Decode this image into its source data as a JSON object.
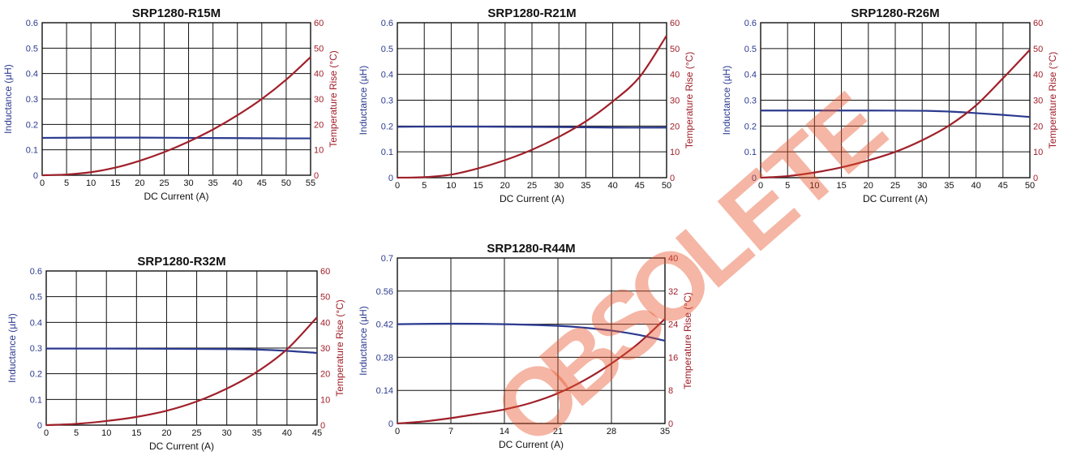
{
  "watermark": {
    "text": "OBSOLETE",
    "color": "#e8542a"
  },
  "colors": {
    "inductance": "#2b3a8f",
    "temperature": "#a0202a",
    "grid": "#111111"
  },
  "chart_data": [
    {
      "type": "line",
      "title": "SRP1280-R15M",
      "xlabel": "DC Current (A)",
      "ylabel": "Inductance (µH)",
      "y2label": "Temperature Rise (°C)",
      "xlim": [
        0,
        55
      ],
      "xticks": [
        0,
        5,
        10,
        15,
        20,
        25,
        30,
        35,
        40,
        45,
        50,
        55
      ],
      "ylim": [
        0,
        0.6
      ],
      "yticks": [
        0,
        0.1,
        0.2,
        0.3,
        0.4,
        0.5,
        0.6
      ],
      "y2lim": [
        0,
        60
      ],
      "y2ticks": [
        0,
        10,
        20,
        30,
        40,
        50,
        60
      ],
      "grid": true,
      "series": [
        {
          "axis": "left",
          "color": "#2b3a8f",
          "x": [
            0,
            10,
            20,
            30,
            40,
            50,
            55
          ],
          "y": [
            0.147,
            0.148,
            0.148,
            0.147,
            0.146,
            0.145,
            0.145
          ]
        },
        {
          "axis": "right",
          "color": "#a0202a",
          "x": [
            0,
            5,
            10,
            15,
            20,
            25,
            30,
            35,
            40,
            45,
            50,
            55
          ],
          "y": [
            0,
            0.3,
            1.2,
            3,
            5.7,
            9.1,
            13.2,
            18,
            23.6,
            30,
            37.6,
            46.5
          ]
        }
      ]
    },
    {
      "type": "line",
      "title": "SRP1280-R21M",
      "xlabel": "DC Current (A)",
      "ylabel": "Inductance (µH)",
      "y2label": "Temperature Rise (°C)",
      "xlim": [
        0,
        50
      ],
      "xticks": [
        0,
        5,
        10,
        15,
        20,
        25,
        30,
        35,
        40,
        45,
        50
      ],
      "ylim": [
        0,
        0.6
      ],
      "yticks": [
        0,
        0.1,
        0.2,
        0.3,
        0.4,
        0.5,
        0.6
      ],
      "y2lim": [
        0,
        60
      ],
      "y2ticks": [
        0,
        10,
        20,
        30,
        40,
        50,
        60
      ],
      "grid": true,
      "series": [
        {
          "axis": "left",
          "color": "#2b3a8f",
          "x": [
            0,
            10,
            20,
            30,
            40,
            50
          ],
          "y": [
            0.197,
            0.198,
            0.197,
            0.196,
            0.194,
            0.194
          ]
        },
        {
          "axis": "right",
          "color": "#a0202a",
          "x": [
            0,
            5,
            10,
            15,
            20,
            25,
            30,
            35,
            40,
            45,
            50
          ],
          "y": [
            0,
            0.2,
            1.2,
            3.6,
            6.8,
            10.8,
            15.8,
            21.8,
            29.5,
            39,
            55
          ]
        }
      ]
    },
    {
      "type": "line",
      "title": "SRP1280-R26M",
      "xlabel": "DC Current (A)",
      "ylabel": "Inductance (µH)",
      "y2label": "Temperature Rise (°C)",
      "xlim": [
        0,
        50
      ],
      "xticks": [
        0,
        5,
        10,
        15,
        20,
        25,
        30,
        35,
        40,
        45,
        50
      ],
      "ylim": [
        0,
        0.6
      ],
      "yticks": [
        0,
        0.1,
        0.2,
        0.3,
        0.4,
        0.5,
        0.6
      ],
      "y2lim": [
        0,
        60
      ],
      "y2ticks": [
        0,
        10,
        20,
        30,
        40,
        50,
        60
      ],
      "grid": true,
      "series": [
        {
          "axis": "left",
          "color": "#2b3a8f",
          "x": [
            0,
            10,
            20,
            30,
            35,
            40,
            45,
            50
          ],
          "y": [
            0.26,
            0.26,
            0.26,
            0.259,
            0.256,
            0.25,
            0.243,
            0.235
          ]
        },
        {
          "axis": "right",
          "color": "#a0202a",
          "x": [
            0,
            5,
            10,
            15,
            20,
            25,
            30,
            35,
            40,
            45,
            50
          ],
          "y": [
            0,
            0.6,
            2,
            4,
            6.7,
            10,
            14.5,
            20.2,
            28,
            38.5,
            49.5
          ]
        }
      ]
    },
    {
      "type": "line",
      "title": "SRP1280-R32M",
      "xlabel": "DC Current (A)",
      "ylabel": "Inductance (µH)",
      "y2label": "Temperature Rise (°C)",
      "xlim": [
        0,
        45
      ],
      "xticks": [
        0,
        5,
        10,
        15,
        20,
        25,
        30,
        35,
        40,
        45
      ],
      "ylim": [
        0,
        0.6
      ],
      "yticks": [
        0,
        0.1,
        0.2,
        0.3,
        0.4,
        0.5,
        0.6
      ],
      "y2lim": [
        0,
        60
      ],
      "y2ticks": [
        0,
        10,
        20,
        30,
        40,
        50,
        60
      ],
      "grid": true,
      "series": [
        {
          "axis": "left",
          "color": "#2b3a8f",
          "x": [
            0,
            10,
            20,
            30,
            35,
            40,
            45
          ],
          "y": [
            0.298,
            0.298,
            0.297,
            0.296,
            0.294,
            0.289,
            0.281
          ]
        },
        {
          "axis": "right",
          "color": "#a0202a",
          "x": [
            0,
            5,
            10,
            15,
            20,
            25,
            30,
            35,
            40,
            45
          ],
          "y": [
            0,
            0.5,
            1.6,
            3.2,
            5.6,
            9.2,
            14.2,
            20.7,
            29.5,
            42
          ]
        }
      ]
    },
    {
      "type": "line",
      "title": "SRP1280-R44M",
      "xlabel": "DC Current (A)",
      "ylabel": "Inductance (µH)",
      "y2label": "Temperature Rise (°C)",
      "xlim": [
        0,
        35
      ],
      "xticks": [
        0,
        7,
        14,
        21,
        28,
        35
      ],
      "ylim": [
        0,
        0.7
      ],
      "yticks": [
        0,
        0.14,
        0.28,
        0.42,
        0.56,
        0.7
      ],
      "y2lim": [
        0,
        40
      ],
      "y2ticks": [
        0,
        8,
        16,
        24,
        32,
        40
      ],
      "grid": true,
      "series": [
        {
          "axis": "left",
          "color": "#2b3a8f",
          "x": [
            0,
            7,
            14,
            21,
            24.5,
            28,
            31.5,
            35
          ],
          "y": [
            0.42,
            0.422,
            0.42,
            0.413,
            0.405,
            0.393,
            0.375,
            0.35
          ]
        },
        {
          "axis": "right",
          "color": "#a0202a",
          "x": [
            0,
            3.5,
            7,
            10.5,
            14,
            17.5,
            21,
            24.5,
            28,
            31.5,
            35
          ],
          "y": [
            0,
            0.5,
            1.3,
            2.3,
            3.4,
            5,
            7.3,
            10.5,
            14.5,
            19.3,
            25.3
          ]
        }
      ]
    }
  ]
}
